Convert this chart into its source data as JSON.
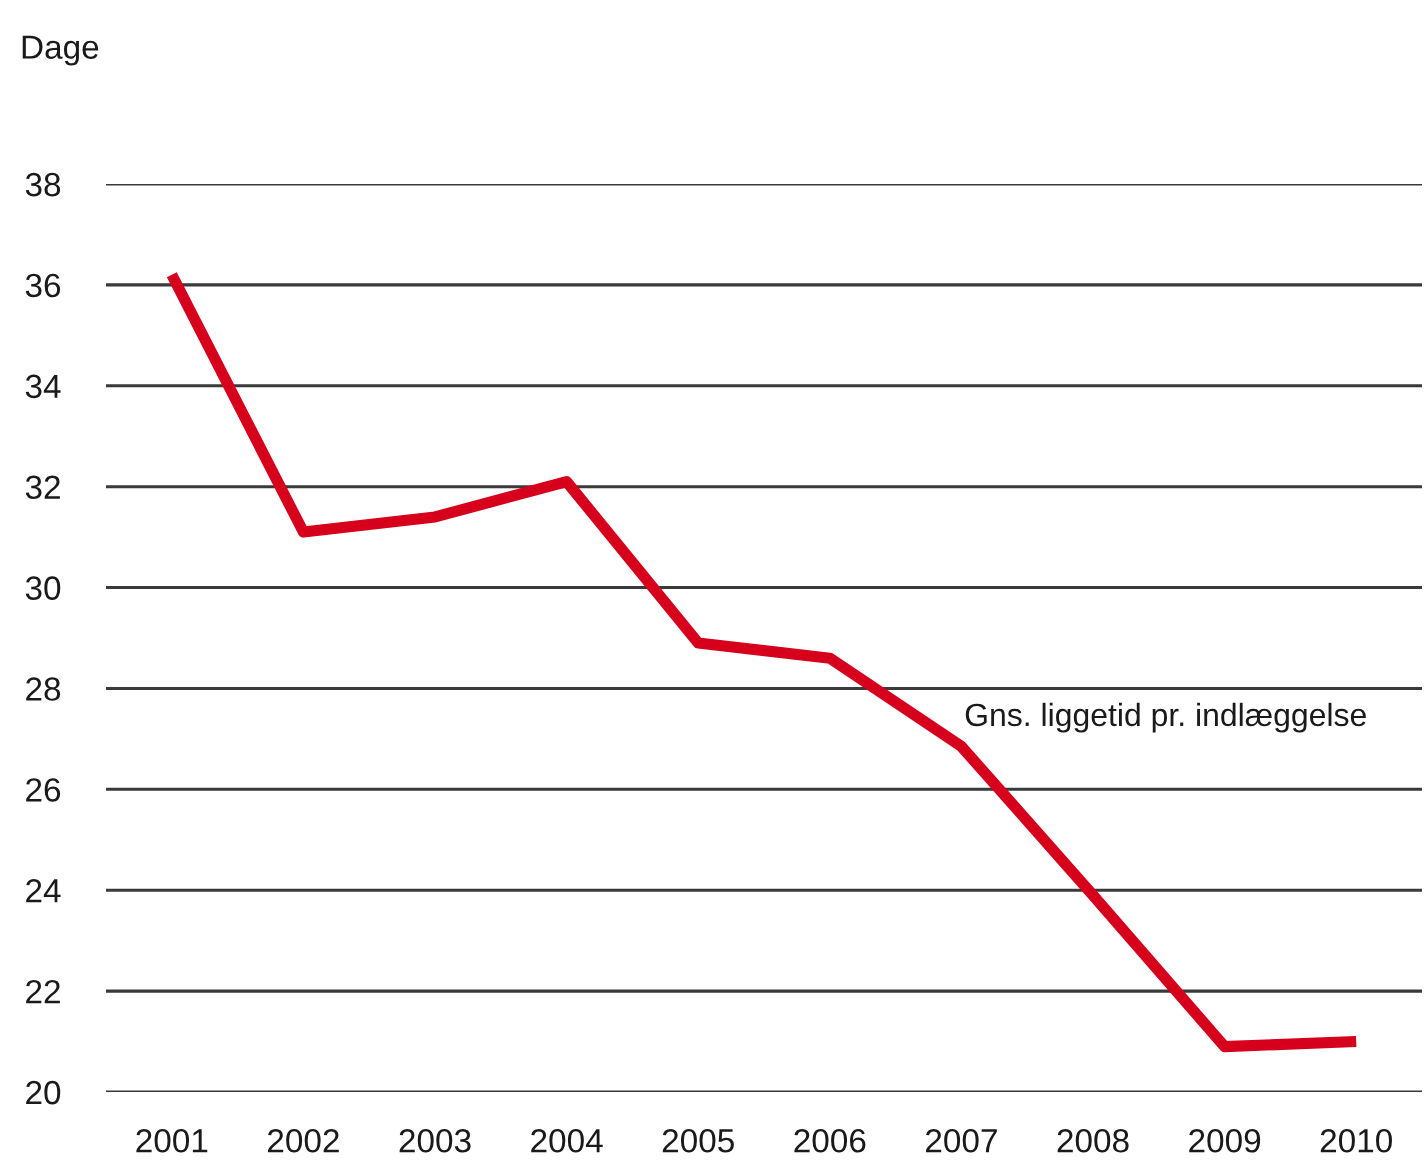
{
  "chart_data": {
    "type": "line",
    "ylabel": "Dage",
    "categories": [
      "2001",
      "2002",
      "2003",
      "2004",
      "2005",
      "2006",
      "2007",
      "2008",
      "2009",
      "2010"
    ],
    "series": [
      {
        "name": "Gns. liggetid pr. indlæggelse",
        "color": "#d6001c",
        "values": [
          36.2,
          31.1,
          31.4,
          32.1,
          28.9,
          28.6,
          26.85,
          23.9,
          20.9,
          21.0
        ]
      }
    ],
    "ylim": [
      20,
      38
    ],
    "yticks": [
      20,
      22,
      24,
      26,
      28,
      30,
      32,
      34,
      36,
      38
    ],
    "grid": "y"
  }
}
